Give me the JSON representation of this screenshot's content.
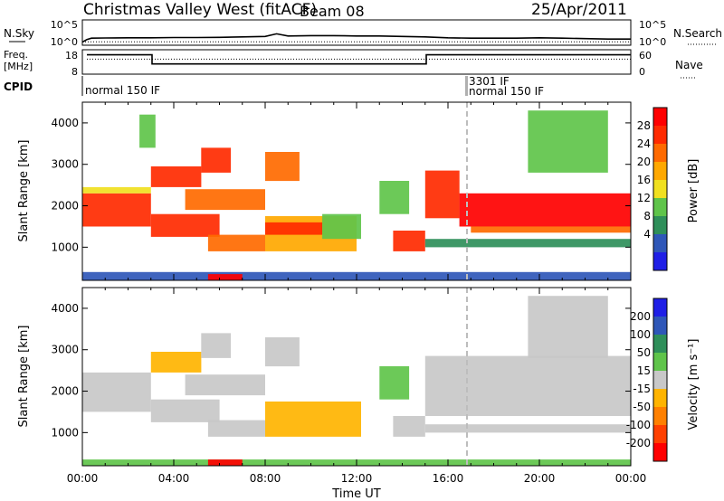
{
  "header": {
    "station": "Christmas Valley West (fitACF)",
    "beam": "Beam 08",
    "date": "25/Apr/2011"
  },
  "colors": {
    "power_scale": [
      "#1f1fe6",
      "#2f57b8",
      "#2f8f5a",
      "#5fc44a",
      "#f0e020",
      "#ffa800",
      "#ff6a00",
      "#ff2a00",
      "#ff0000"
    ],
    "velocity_scale": [
      "#1f1fe6",
      "#2f57b8",
      "#2f8f5a",
      "#5fc44a",
      "#c8c8c8",
      "#ffb400",
      "#ff8000",
      "#ff4000",
      "#ff0000"
    ],
    "ground_scatter": "#c8c8c8",
    "gap_marker": "#b0b0b0"
  },
  "chart_data": [
    {
      "type": "line",
      "panel": "noise",
      "left_label": "N.Sky",
      "right_label": "N.Search",
      "yticks_left": [
        "10^5",
        "10^0"
      ],
      "yticks_right": [
        "10^5",
        "10^0"
      ],
      "series": [
        {
          "name": "N.Sky",
          "style": "solid",
          "x": [
            0,
            0.2,
            0.4,
            1,
            2,
            3,
            4,
            5,
            6,
            7,
            8,
            8.5,
            9,
            10,
            11,
            12,
            13,
            14,
            15,
            16,
            17,
            18,
            19,
            20,
            21,
            22,
            23,
            24
          ],
          "y": [
            0.3,
            0.9,
            1.2,
            1.25,
            1.3,
            1.3,
            1.35,
            1.35,
            1.4,
            1.5,
            1.6,
            2.2,
            1.7,
            1.8,
            1.8,
            1.7,
            1.7,
            1.6,
            1.5,
            1.3,
            1.2,
            1.2,
            1.2,
            1.3,
            1.2,
            1.1,
            1.0,
            1.0
          ]
        },
        {
          "name": "N.Search",
          "style": "dotted",
          "x": [
            0,
            24
          ],
          "y": [
            0.35,
            0.35
          ]
        }
      ]
    },
    {
      "type": "line",
      "panel": "frequency",
      "left_label": "Freq.",
      "left_unit": "[MHz]",
      "right_label": "Nave",
      "yticks_left": [
        "18",
        "8"
      ],
      "yticks_right": [
        "60",
        "0"
      ],
      "series": [
        {
          "name": "Freq.",
          "style": "solid",
          "x": [
            0.2,
            3.05,
            3.05,
            15.05,
            15.05,
            24
          ],
          "y": [
            16.5,
            16.5,
            12.3,
            12.3,
            16.5,
            16.5
          ]
        },
        {
          "name": "Nave",
          "style": "dotted",
          "x": [
            0.2,
            24
          ],
          "y": [
            39,
            39
          ]
        }
      ]
    },
    {
      "type": "table",
      "panel": "cpid",
      "label": "CPID",
      "segments": [
        {
          "start": 0.05,
          "text": "normal 150 IF"
        },
        {
          "start": 17.05,
          "text": "3301 IF"
        },
        {
          "start": 17.05,
          "text": "normal 150 IF"
        }
      ]
    },
    {
      "type": "heatmap",
      "panel": "power",
      "ylabel": "Slant Range [km]",
      "ylim": [
        200,
        4500
      ],
      "yticks": [
        1000,
        2000,
        3000,
        4000
      ],
      "xlim": [
        0,
        24
      ],
      "colorbar_label": "Power [dB]",
      "colorbar_ticks": [
        "28",
        "24",
        "20",
        "16",
        "12",
        "8",
        "4"
      ],
      "bands": [
        {
          "t0": 0.0,
          "t1": 3.0,
          "r0": 1500,
          "r1": 2300,
          "c": 7
        },
        {
          "t0": 0.0,
          "t1": 3.0,
          "r0": 2300,
          "r1": 2450,
          "c": 4
        },
        {
          "t0": 3.0,
          "t1": 6.0,
          "r0": 1250,
          "r1": 1800,
          "c": 7
        },
        {
          "t0": 3.0,
          "t1": 5.2,
          "r0": 2450,
          "r1": 2950,
          "c": 7
        },
        {
          "t0": 5.2,
          "t1": 6.5,
          "r0": 2800,
          "r1": 3400,
          "c": 7
        },
        {
          "t0": 4.5,
          "t1": 8.0,
          "r0": 1900,
          "r1": 2400,
          "c": 6
        },
        {
          "t0": 5.5,
          "t1": 8.0,
          "r0": 900,
          "r1": 1300,
          "c": 6
        },
        {
          "t0": 8.0,
          "t1": 12.0,
          "r0": 900,
          "r1": 1750,
          "c": 5
        },
        {
          "t0": 8.0,
          "t1": 10.5,
          "r0": 1300,
          "r1": 1600,
          "c": 7
        },
        {
          "t0": 10.5,
          "t1": 12.2,
          "r0": 1200,
          "r1": 1800,
          "c": 3
        },
        {
          "t0": 13.0,
          "t1": 14.3,
          "r0": 1800,
          "r1": 2600,
          "c": 3
        },
        {
          "t0": 13.6,
          "t1": 15.0,
          "r0": 900,
          "r1": 1400,
          "c": 7
        },
        {
          "t0": 15.0,
          "t1": 16.5,
          "r0": 1700,
          "r1": 2850,
          "c": 7
        },
        {
          "t0": 16.5,
          "t1": 24.0,
          "r0": 1500,
          "r1": 2300,
          "c": 8
        },
        {
          "t0": 17.0,
          "t1": 24.0,
          "r0": 1350,
          "r1": 1500,
          "c": 6
        },
        {
          "t0": 15.0,
          "t1": 24.0,
          "r0": 1000,
          "r1": 1200,
          "c": 2
        },
        {
          "t0": 8.0,
          "t1": 9.5,
          "r0": 2600,
          "r1": 3300,
          "c": 6
        },
        {
          "t0": 2.5,
          "t1": 3.2,
          "r0": 3400,
          "r1": 4200,
          "c": 3
        },
        {
          "t0": 19.5,
          "t1": 23.0,
          "r0": 2800,
          "r1": 4300,
          "c": 3
        },
        {
          "t0": 0.0,
          "t1": 24.0,
          "r0": 200,
          "r1": 400,
          "c": 1
        },
        {
          "t0": 5.5,
          "t1": 7.0,
          "r0": 200,
          "r1": 350,
          "c": 8
        }
      ]
    },
    {
      "type": "heatmap",
      "panel": "velocity",
      "ylabel": "Slant Range [km]",
      "ylim": [
        200,
        4500
      ],
      "yticks": [
        1000,
        2000,
        3000,
        4000
      ],
      "xlim": [
        0,
        24
      ],
      "xlabel": "Time UT",
      "xticks": [
        "00:00",
        "04:00",
        "08:00",
        "12:00",
        "16:00",
        "20:00",
        "00:00"
      ],
      "colorbar_label": "Velocity [m s⁻¹]",
      "colorbar_ticks": [
        "200",
        "100",
        "50",
        "15",
        "-15",
        "-50",
        "-100",
        "-200"
      ],
      "bands": [
        {
          "t0": 0.0,
          "t1": 3.0,
          "r0": 1500,
          "r1": 2450,
          "c": 4
        },
        {
          "t0": 3.0,
          "t1": 6.0,
          "r0": 1250,
          "r1": 1800,
          "c": 4
        },
        {
          "t0": 3.0,
          "t1": 5.2,
          "r0": 2450,
          "r1": 2950,
          "c": 5
        },
        {
          "t0": 5.2,
          "t1": 6.5,
          "r0": 2800,
          "r1": 3400,
          "c": 4
        },
        {
          "t0": 4.5,
          "t1": 8.0,
          "r0": 1900,
          "r1": 2400,
          "c": 4
        },
        {
          "t0": 5.5,
          "t1": 8.0,
          "r0": 900,
          "r1": 1300,
          "c": 4
        },
        {
          "t0": 8.0,
          "t1": 12.2,
          "r0": 900,
          "r1": 1750,
          "c": 5
        },
        {
          "t0": 8.0,
          "t1": 9.5,
          "r0": 2600,
          "r1": 3300,
          "c": 4
        },
        {
          "t0": 13.0,
          "t1": 14.3,
          "r0": 1800,
          "r1": 2600,
          "c": 3
        },
        {
          "t0": 13.6,
          "t1": 15.0,
          "r0": 900,
          "r1": 1400,
          "c": 4
        },
        {
          "t0": 15.0,
          "t1": 24.0,
          "r0": 1400,
          "r1": 2850,
          "c": 4
        },
        {
          "t0": 15.0,
          "t1": 24.0,
          "r0": 1000,
          "r1": 1200,
          "c": 4
        },
        {
          "t0": 19.5,
          "t1": 23.0,
          "r0": 2800,
          "r1": 4300,
          "c": 4
        },
        {
          "t0": 0.0,
          "t1": 24.0,
          "r0": 200,
          "r1": 350,
          "c": 3
        },
        {
          "t0": 5.5,
          "t1": 7.0,
          "r0": 200,
          "r1": 350,
          "c": 8
        }
      ]
    }
  ]
}
